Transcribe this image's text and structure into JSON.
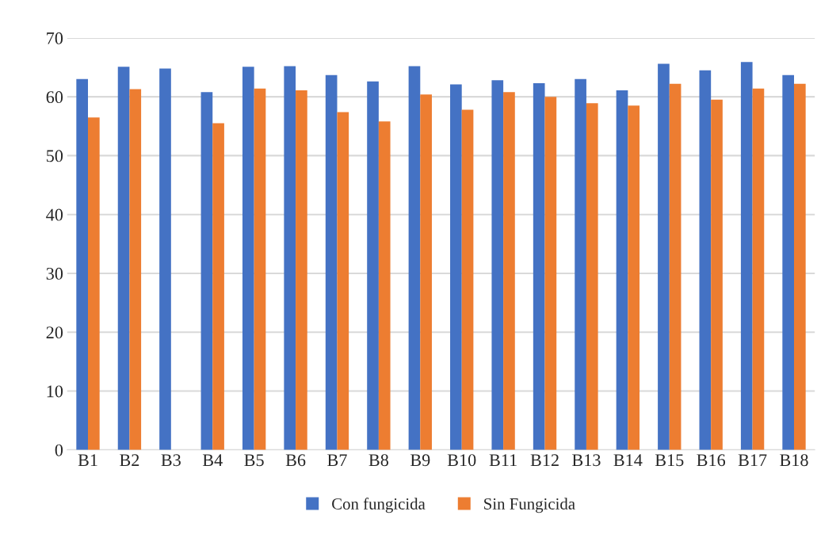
{
  "chart_data": {
    "type": "bar",
    "categories": [
      "B1",
      "B2",
      "B3",
      "B4",
      "B5",
      "B6",
      "B7",
      "B8",
      "B9",
      "B10",
      "B11",
      "B12",
      "B13",
      "B14",
      "B15",
      "B16",
      "B17",
      "B18"
    ],
    "series": [
      {
        "name": "Con fungicida",
        "color": "#4472c4",
        "values": [
          63.0,
          65.1,
          64.8,
          60.8,
          65.1,
          65.2,
          63.7,
          62.6,
          65.2,
          62.1,
          62.8,
          62.3,
          63.0,
          61.1,
          65.6,
          64.5,
          65.9,
          63.7
        ]
      },
      {
        "name": "Sin Fungicida",
        "color": "#ed7d31",
        "values": [
          56.5,
          61.3,
          0,
          55.5,
          61.4,
          61.1,
          57.4,
          55.8,
          60.4,
          57.8,
          60.8,
          60.0,
          58.9,
          58.5,
          62.2,
          59.5,
          61.4,
          62.2
        ]
      }
    ],
    "ylim": [
      0,
      70
    ],
    "yticks": [
      0,
      10,
      20,
      30,
      40,
      50,
      60,
      70
    ],
    "grid": "y",
    "legend": "bottom"
  }
}
